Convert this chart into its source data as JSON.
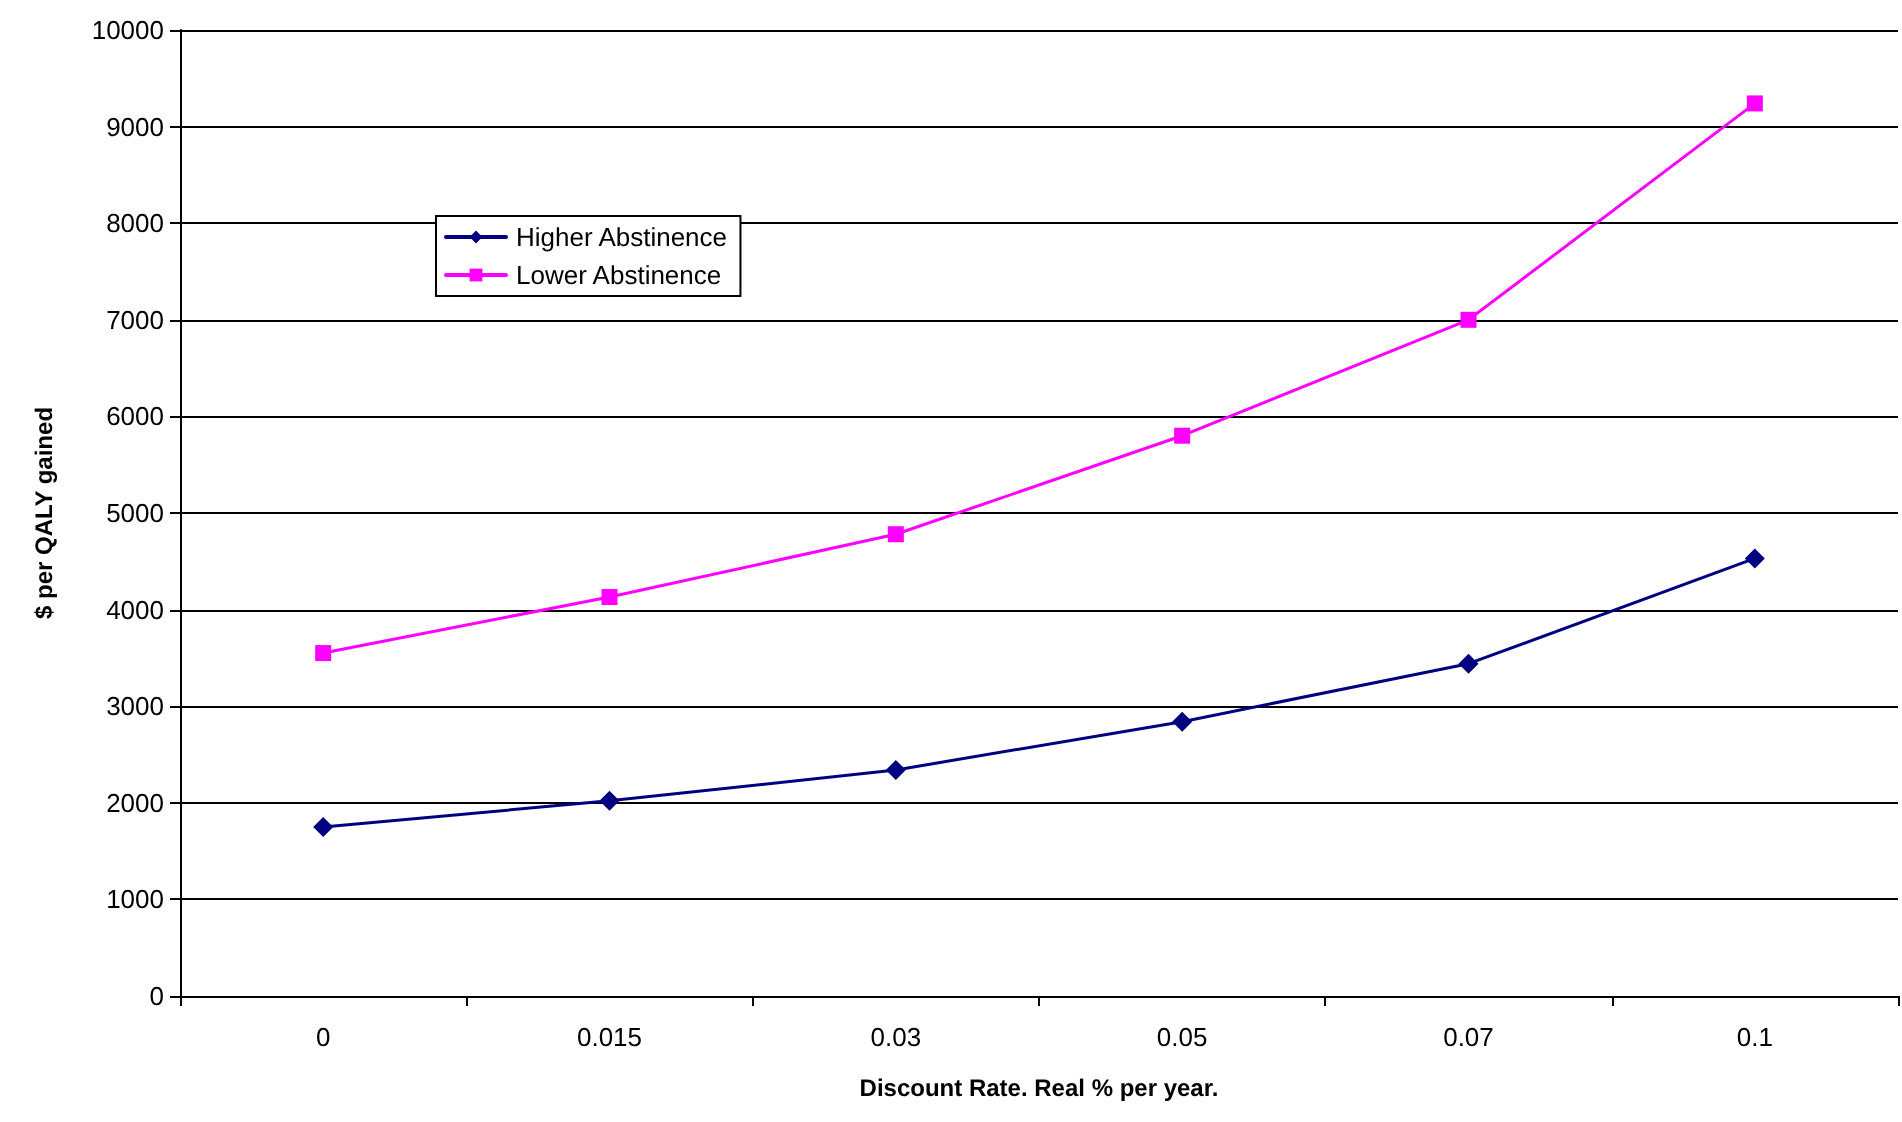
{
  "chart_data": {
    "type": "line",
    "xlabel": "Discount Rate. Real % per year.",
    "ylabel": "$ per QALY gained",
    "categories": [
      "0",
      "0.015",
      "0.03",
      "0.05",
      "0.07",
      "0.1"
    ],
    "series": [
      {
        "name": "Higher Abstinence",
        "color": "#000080",
        "marker": "diamond",
        "values": [
          1750,
          2020,
          2340,
          2840,
          3440,
          4530
        ]
      },
      {
        "name": "Lower Abstinence",
        "color": "#ff00ff",
        "marker": "square",
        "values": [
          3550,
          4130,
          4780,
          5800,
          7000,
          9240
        ]
      }
    ],
    "ylim": [
      0,
      10000
    ],
    "yticks": [
      0,
      1000,
      2000,
      3000,
      4000,
      5000,
      6000,
      7000,
      8000,
      9000,
      10000
    ],
    "grid": "y",
    "legend": "top left",
    "line_style": "solid"
  }
}
